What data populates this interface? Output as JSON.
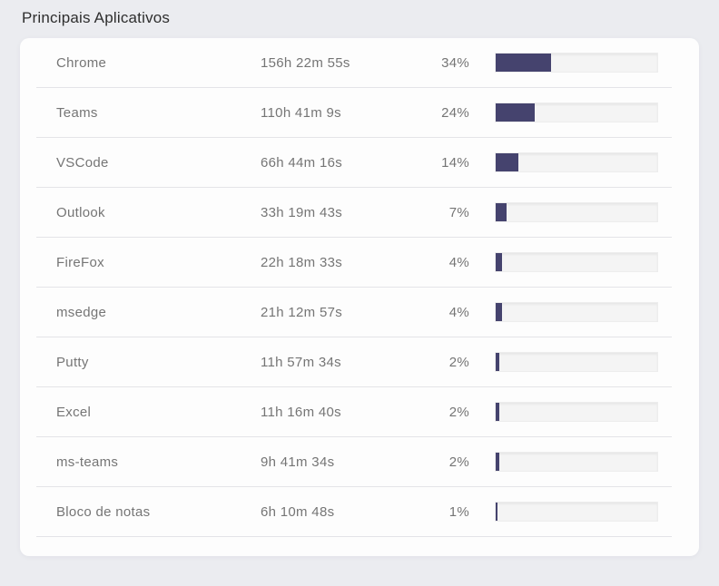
{
  "title": "Principais Aplicativos",
  "colors": {
    "page_background": "#ebecf0",
    "card_background": "#fdfdfd",
    "bar_fill": "#45436e",
    "bar_track": "#f4f4f4",
    "row_divider": "#e4e4e8",
    "text_primary": "#2e2e2e",
    "text_secondary": "#757575"
  },
  "table": {
    "rows": [
      {
        "app": "Chrome",
        "duration": "156h 22m 55s",
        "percent": "34%",
        "percent_value": 34
      },
      {
        "app": "Teams",
        "duration": "110h 41m 9s",
        "percent": "24%",
        "percent_value": 24
      },
      {
        "app": "VSCode",
        "duration": "66h 44m 16s",
        "percent": "14%",
        "percent_value": 14
      },
      {
        "app": "Outlook",
        "duration": "33h 19m 43s",
        "percent": "7%",
        "percent_value": 7
      },
      {
        "app": "FireFox",
        "duration": "22h 18m 33s",
        "percent": "4%",
        "percent_value": 4
      },
      {
        "app": "msedge",
        "duration": "21h 12m 57s",
        "percent": "4%",
        "percent_value": 4
      },
      {
        "app": "Putty",
        "duration": "11h 57m 34s",
        "percent": "2%",
        "percent_value": 2
      },
      {
        "app": "Excel",
        "duration": "11h 16m 40s",
        "percent": "2%",
        "percent_value": 2
      },
      {
        "app": "ms-teams",
        "duration": "9h 41m 34s",
        "percent": "2%",
        "percent_value": 2
      },
      {
        "app": "Bloco de notas",
        "duration": "6h 10m 48s",
        "percent": "1%",
        "percent_value": 1
      }
    ]
  },
  "chart_data": {
    "type": "bar",
    "title": "Principais Aplicativos",
    "categories": [
      "Chrome",
      "Teams",
      "VSCode",
      "Outlook",
      "FireFox",
      "msedge",
      "Putty",
      "Excel",
      "ms-teams",
      "Bloco de notas"
    ],
    "values": [
      34,
      24,
      14,
      7,
      4,
      4,
      2,
      2,
      2,
      1
    ],
    "value_unit": "percent",
    "durations": [
      "156h 22m 55s",
      "110h 41m 9s",
      "66h 44m 16s",
      "33h 19m 43s",
      "22h 18m 33s",
      "21h 12m 57s",
      "11h 57m 34s",
      "11h 16m 40s",
      "9h 41m 34s",
      "6h 10m 48s"
    ],
    "xlabel": "",
    "ylabel": "",
    "xlim": [
      0,
      100
    ],
    "orientation": "horizontal",
    "grid": false,
    "legend": false
  }
}
